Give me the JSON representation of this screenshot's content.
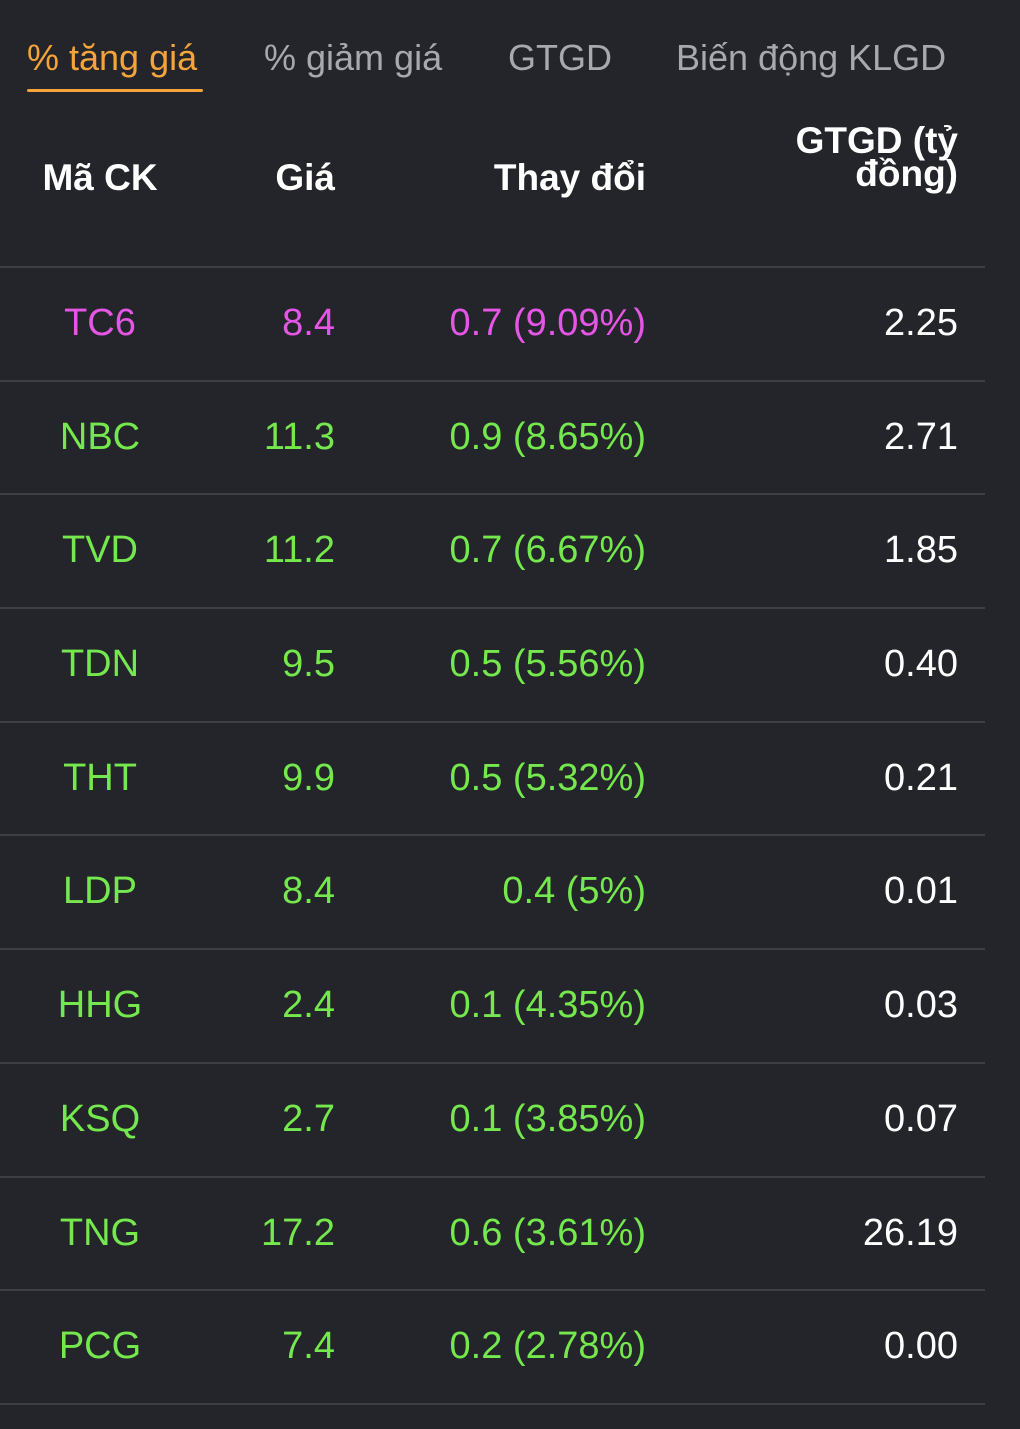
{
  "tabs": [
    {
      "label": "% tăng giá",
      "active": true
    },
    {
      "label": "% giảm giá",
      "active": false
    },
    {
      "label": "GTGD",
      "active": false
    },
    {
      "label": "Biến động KLGD",
      "active": false
    }
  ],
  "table": {
    "headers": {
      "symbol": "Mã CK",
      "price": "Giá",
      "change": "Thay đổi",
      "value": "GTGD (tỷ đồng)"
    },
    "rows": [
      {
        "symbol": "TC6",
        "price": "8.4",
        "change": "0.7 (9.09%)",
        "value": "2.25",
        "status": "ceiling"
      },
      {
        "symbol": "NBC",
        "price": "11.3",
        "change": "0.9 (8.65%)",
        "value": "2.71",
        "status": "up"
      },
      {
        "symbol": "TVD",
        "price": "11.2",
        "change": "0.7 (6.67%)",
        "value": "1.85",
        "status": "up"
      },
      {
        "symbol": "TDN",
        "price": "9.5",
        "change": "0.5 (5.56%)",
        "value": "0.40",
        "status": "up"
      },
      {
        "symbol": "THT",
        "price": "9.9",
        "change": "0.5 (5.32%)",
        "value": "0.21",
        "status": "up"
      },
      {
        "symbol": "LDP",
        "price": "8.4",
        "change": "0.4 (5%)",
        "value": "0.01",
        "status": "up"
      },
      {
        "symbol": "HHG",
        "price": "2.4",
        "change": "0.1 (4.35%)",
        "value": "0.03",
        "status": "up"
      },
      {
        "symbol": "KSQ",
        "price": "2.7",
        "change": "0.1 (3.85%)",
        "value": "0.07",
        "status": "up"
      },
      {
        "symbol": "TNG",
        "price": "17.2",
        "change": "0.6 (3.61%)",
        "value": "26.19",
        "status": "up"
      },
      {
        "symbol": "PCG",
        "price": "7.4",
        "change": "0.2 (2.78%)",
        "value": "0.00",
        "status": "up"
      }
    ]
  },
  "colors": {
    "background": "#24252a",
    "active_tab": "#f5a33b",
    "inactive_tab": "#a8a9ad",
    "up": "#74e84d",
    "ceiling": "#e656e6",
    "divider": "#3e3f44"
  }
}
